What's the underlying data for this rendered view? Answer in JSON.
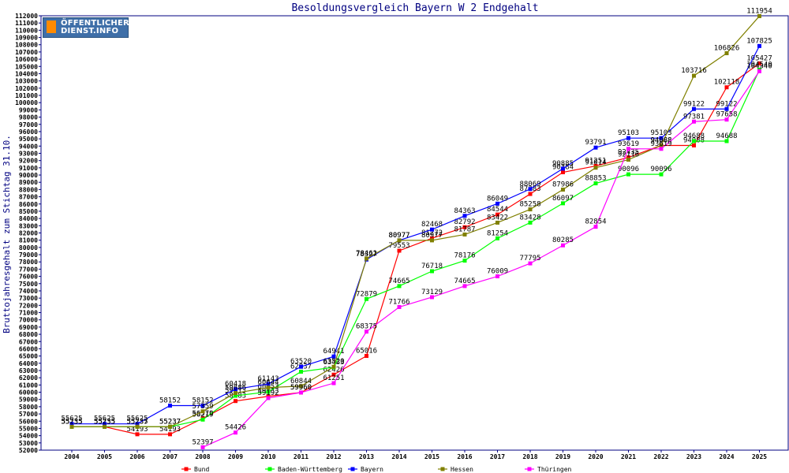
{
  "logo": {
    "line1": "ÖFFENTLICHER",
    "line2": "DIENST.INFO"
  },
  "chart_data": {
    "type": "line",
    "title": "Besoldungsvergleich Bayern W 2 Endgehalt",
    "xlabel": "",
    "ylabel": "Bruttojahresgehalt zum Stichtag 31.10.",
    "ylim": [
      52000,
      112000
    ],
    "ytick_step": 1000,
    "x": [
      2004,
      2005,
      2006,
      2007,
      2008,
      2009,
      2010,
      2011,
      2012,
      2013,
      2014,
      2015,
      2016,
      2017,
      2018,
      2019,
      2020,
      2021,
      2022,
      2023,
      2024,
      2025
    ],
    "grid": false,
    "legend_position": "bottom",
    "series": [
      {
        "name": "Bund",
        "color": "#ff0000",
        "values": [
          55235,
          55235,
          54193,
          54193,
          56379,
          58783,
          59433,
          59960,
          62426,
          65016,
          79553,
          81272,
          82792,
          84544,
          87383,
          90384,
          91251,
          92435,
          94088,
          94088,
          102118,
          105427
        ]
      },
      {
        "name": "Baden-Württemberg",
        "color": "#00ff00",
        "values": [
          55235,
          55235,
          55235,
          55237,
          56219,
          59513,
          60053,
          62837,
          63433,
          72879,
          74665,
          76718,
          78176,
          81254,
          83428,
          86097,
          88853,
          90096,
          90096,
          94688,
          94688,
          104540
        ]
      },
      {
        "name": "Bayern",
        "color": "#0000ff",
        "values": [
          55625,
          55625,
          55625,
          58152,
          58152,
          60418,
          61143,
          63520,
          64941,
          78327,
          80977,
          82468,
          84363,
          86049,
          88069,
          90885,
          93791,
          95103,
          95103,
          99122,
          99122,
          107825
        ]
      },
      {
        "name": "Hessen",
        "color": "#808000",
        "values": [
          55235,
          55235,
          55237,
          55237,
          57359,
          59886,
          60644,
          60844,
          63520,
          78461,
          80977,
          80977,
          81787,
          83422,
          85258,
          87986,
          91014,
          92116,
          94088,
          103716,
          106826,
          111954
        ]
      },
      {
        "name": "Thüringen",
        "color": "#ff00ff",
        "values": [
          null,
          null,
          null,
          null,
          52397,
          54426,
          59192,
          59960,
          61251,
          68375,
          71766,
          73129,
          74665,
          76009,
          77795,
          80285,
          82854,
          93619,
          93619,
          97381,
          97658,
          104340
        ]
      }
    ]
  }
}
